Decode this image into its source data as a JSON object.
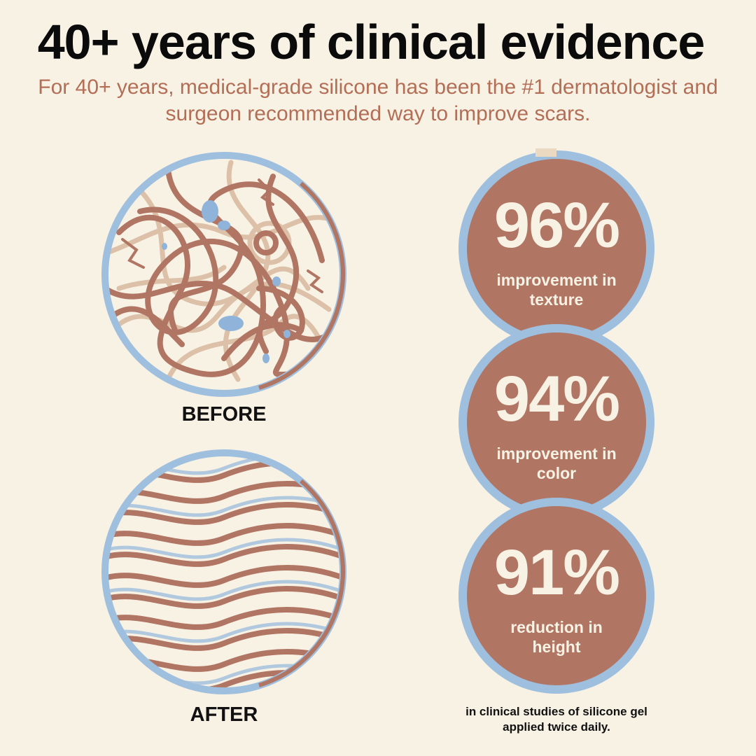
{
  "header": {
    "title": "40+ years of clinical evidence",
    "subtitle": "For 40+ years, medical-grade silicone has been the #1 dermatologist and surgeon recommended way to improve scars."
  },
  "comparison": {
    "before_label": "BEFORE",
    "after_label": "AFTER"
  },
  "stats": [
    {
      "value": "96%",
      "label": "improvement in texture"
    },
    {
      "value": "94%",
      "label": "improvement in color"
    },
    {
      "value": "91%",
      "label": "reduction in height"
    }
  ],
  "footnote": "in clinical studies of silicone gel applied twice daily.",
  "colors": {
    "background": "#f8f2e5",
    "accent_brown": "#b07563",
    "ring_blue": "#9fbfde",
    "light_tan": "#dcc0a8",
    "text_dark": "#0b0b0b"
  }
}
